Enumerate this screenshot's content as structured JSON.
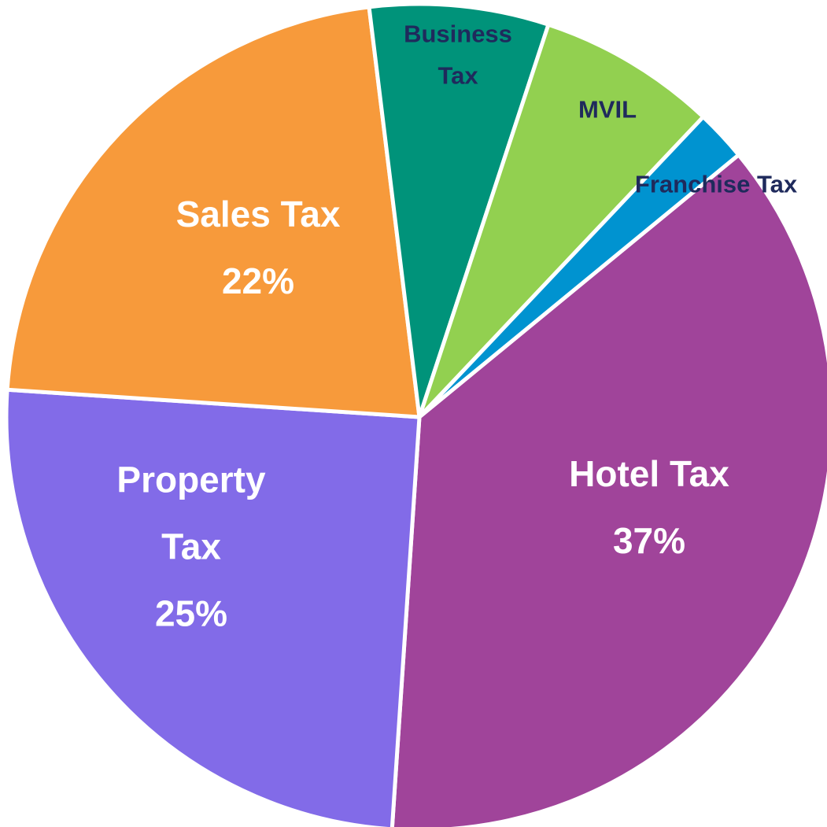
{
  "chart_data": {
    "type": "pie",
    "categories": [
      "Hotel Tax",
      "Property Tax",
      "Sales Tax",
      "Business Tax",
      "MVIL",
      "Franchise Tax"
    ],
    "values": [
      37,
      25,
      22,
      7,
      7,
      2
    ],
    "value_labels": [
      "37%",
      "25%",
      "22%",
      null,
      null,
      null
    ],
    "colors": [
      "#a0449a",
      "#826be8",
      "#f79a3b",
      "#00937a",
      "#92d050",
      "#0093d0"
    ]
  }
}
